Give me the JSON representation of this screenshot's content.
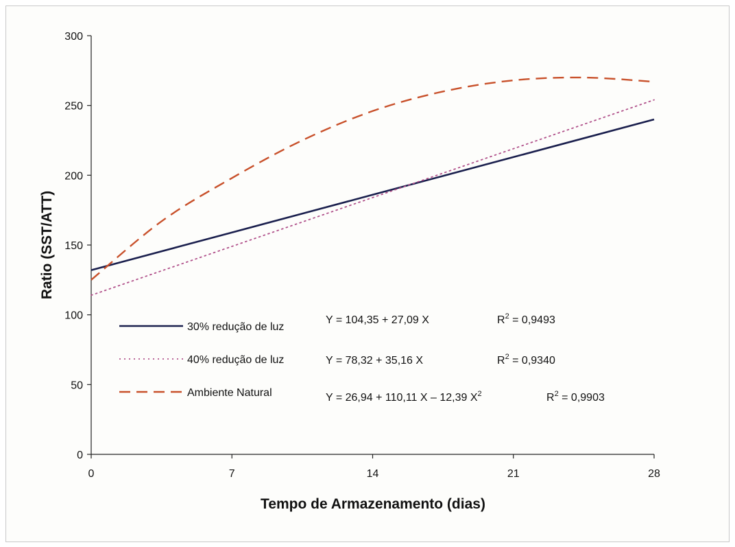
{
  "chart_data": {
    "type": "line",
    "xlabel": "Tempo de Armazenamento (dias)",
    "ylabel": "Ratio (SST/ATT)",
    "xlim": [
      0,
      28
    ],
    "ylim": [
      0,
      300
    ],
    "xticks": [
      "0",
      "7",
      "14",
      "21",
      "28"
    ],
    "yticks": [
      "0",
      "50",
      "100",
      "150",
      "200",
      "250",
      "300"
    ],
    "grid": false,
    "legend_position": "lower-left",
    "series": [
      {
        "name": "30% redução de luz",
        "color": "#1a1f4d",
        "style": "solid",
        "x": [
          0,
          7,
          14,
          21,
          28
        ],
        "y": [
          132,
          159,
          186,
          213,
          240
        ],
        "equation": "Y = 104,35 + 27,09 X",
        "r2_label": "R",
        "r2_sup": "2",
        "r2_value": " = 0,9493"
      },
      {
        "name": "40% redução de luz",
        "color": "#b0508a",
        "style": "dotted",
        "x": [
          0,
          7,
          14,
          21,
          28
        ],
        "y": [
          114,
          149,
          184,
          219,
          254
        ],
        "equation": "Y = 78,32 + 35,16 X",
        "r2_label": "R",
        "r2_sup": "2",
        "r2_value": " = 0,9340"
      },
      {
        "name": "Ambiente Natural",
        "color": "#c8502a",
        "style": "dashed",
        "x": [
          0,
          3.5,
          7,
          10.5,
          14,
          17.5,
          21,
          24.5,
          28
        ],
        "y": [
          125,
          167,
          198,
          225,
          246,
          260,
          268,
          270,
          267
        ],
        "equation_main": "Y = 26,94 + 110,11 X – 12,39 X",
        "equation_sup": "2",
        "r2_label": "R",
        "r2_sup": "2",
        "r2_value": " = 0,9903"
      }
    ]
  }
}
